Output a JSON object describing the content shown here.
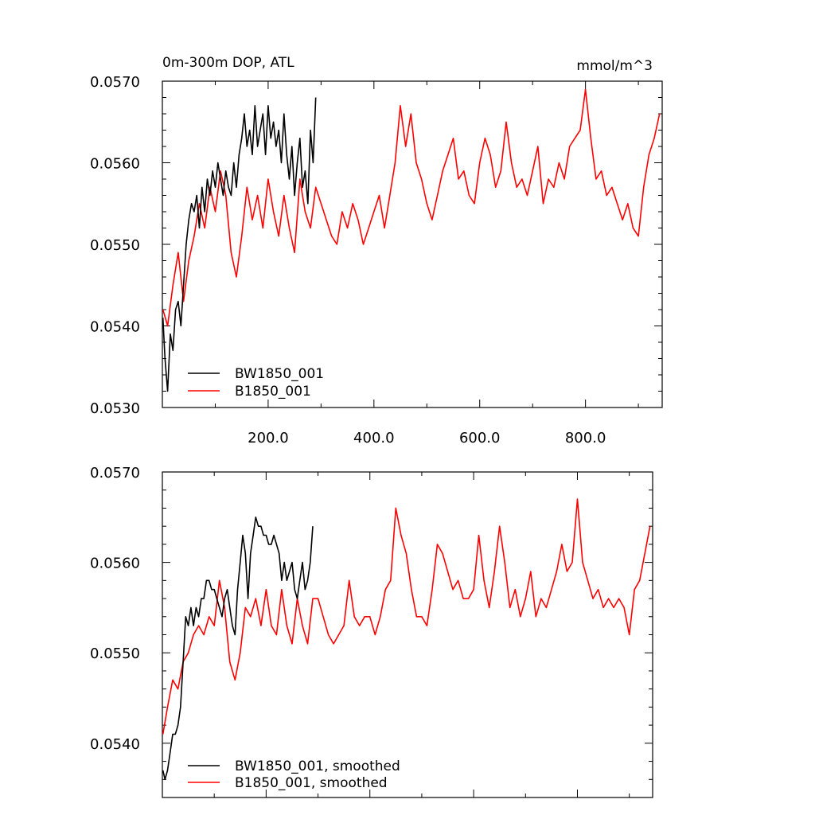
{
  "chart_data": [
    {
      "type": "line",
      "title": "0m-300m DOP, ATL",
      "units_label": "mmol/m^3",
      "xlim": [
        0,
        945
      ],
      "ylim": [
        0.053,
        0.057
      ],
      "xticks": [
        200,
        400,
        600,
        800
      ],
      "xtick_labels": [
        "200.0",
        "400.0",
        "600.0",
        "800.0"
      ],
      "yticks": [
        0.053,
        0.054,
        0.055,
        0.056,
        0.057
      ],
      "ytick_labels": [
        "0.0530",
        "0.0540",
        "0.0550",
        "0.0560",
        "0.0570"
      ],
      "legend_position": "bottom-left",
      "series": [
        {
          "name": "BW1850_001",
          "color": "#000000",
          "x": [
            1,
            5,
            10,
            15,
            20,
            25,
            30,
            35,
            40,
            45,
            50,
            55,
            60,
            65,
            70,
            75,
            80,
            85,
            90,
            95,
            100,
            105,
            110,
            115,
            120,
            125,
            130,
            135,
            140,
            145,
            150,
            155,
            160,
            165,
            170,
            175,
            180,
            185,
            190,
            195,
            200,
            205,
            210,
            215,
            220,
            225,
            230,
            235,
            240,
            245,
            250,
            255,
            260,
            265,
            270,
            275,
            280,
            285,
            290
          ],
          "values": [
            0.0541,
            0.0536,
            0.0532,
            0.0539,
            0.0537,
            0.0542,
            0.0543,
            0.054,
            0.0545,
            0.055,
            0.0553,
            0.0555,
            0.0554,
            0.0556,
            0.0552,
            0.0557,
            0.0554,
            0.0558,
            0.0556,
            0.0559,
            0.0557,
            0.056,
            0.0558,
            0.0556,
            0.0559,
            0.0557,
            0.0556,
            0.056,
            0.0557,
            0.0561,
            0.0563,
            0.0566,
            0.0562,
            0.0564,
            0.0561,
            0.0567,
            0.0562,
            0.0564,
            0.0566,
            0.0561,
            0.0567,
            0.0563,
            0.0565,
            0.0562,
            0.0564,
            0.056,
            0.0566,
            0.0561,
            0.0558,
            0.0562,
            0.0556,
            0.056,
            0.0563,
            0.0557,
            0.0559,
            0.0555,
            0.0564,
            0.056,
            0.0568
          ]
        },
        {
          "name": "B1850_001",
          "color": "#ff0000",
          "x": [
            1,
            10,
            20,
            30,
            40,
            50,
            60,
            70,
            80,
            90,
            100,
            110,
            120,
            130,
            140,
            150,
            160,
            170,
            180,
            190,
            200,
            210,
            220,
            230,
            240,
            250,
            260,
            270,
            280,
            290,
            300,
            310,
            320,
            330,
            340,
            350,
            360,
            370,
            380,
            390,
            400,
            410,
            420,
            430,
            440,
            450,
            460,
            470,
            480,
            490,
            500,
            510,
            520,
            530,
            540,
            550,
            560,
            570,
            580,
            590,
            600,
            610,
            620,
            630,
            640,
            650,
            660,
            670,
            680,
            690,
            700,
            710,
            720,
            730,
            740,
            750,
            760,
            770,
            780,
            790,
            800,
            810,
            820,
            830,
            840,
            850,
            860,
            870,
            880,
            890,
            900,
            910,
            920,
            930,
            940
          ],
          "values": [
            0.0542,
            0.054,
            0.0545,
            0.0549,
            0.0543,
            0.0548,
            0.0551,
            0.0555,
            0.0552,
            0.0557,
            0.0554,
            0.0559,
            0.0556,
            0.0549,
            0.0546,
            0.0551,
            0.0557,
            0.0553,
            0.0556,
            0.0552,
            0.0558,
            0.0554,
            0.0551,
            0.0556,
            0.0552,
            0.0549,
            0.0558,
            0.0554,
            0.0552,
            0.0557,
            0.0555,
            0.0553,
            0.0551,
            0.055,
            0.0554,
            0.0552,
            0.0555,
            0.0553,
            0.055,
            0.0552,
            0.0554,
            0.0556,
            0.0552,
            0.0556,
            0.056,
            0.0567,
            0.0562,
            0.0566,
            0.056,
            0.0558,
            0.0555,
            0.0553,
            0.0556,
            0.0559,
            0.0561,
            0.0563,
            0.0558,
            0.0559,
            0.0556,
            0.0555,
            0.056,
            0.0563,
            0.0561,
            0.0557,
            0.0559,
            0.0565,
            0.056,
            0.0557,
            0.0558,
            0.0556,
            0.0559,
            0.0562,
            0.0555,
            0.0558,
            0.0557,
            0.056,
            0.0558,
            0.0562,
            0.0563,
            0.0564,
            0.0569,
            0.0563,
            0.0558,
            0.0559,
            0.0556,
            0.0557,
            0.0555,
            0.0553,
            0.0555,
            0.0552,
            0.0551,
            0.0557,
            0.0561,
            0.0563,
            0.0566
          ]
        }
      ]
    },
    {
      "type": "line",
      "xlim": [
        0,
        945
      ],
      "ylim": [
        0.0534,
        0.057
      ],
      "xticks": [
        200,
        400,
        600,
        800
      ],
      "yticks": [
        0.054,
        0.055,
        0.056,
        0.057
      ],
      "ytick_labels": [
        "0.0540",
        "0.0550",
        "0.0560",
        "0.0570"
      ],
      "legend_position": "bottom-left",
      "series": [
        {
          "name": "BW1850_001, smoothed",
          "color": "#000000",
          "x": [
            1,
            5,
            10,
            15,
            20,
            25,
            30,
            35,
            40,
            45,
            50,
            55,
            60,
            65,
            70,
            75,
            80,
            85,
            90,
            95,
            100,
            105,
            110,
            115,
            120,
            125,
            130,
            135,
            140,
            145,
            150,
            155,
            160,
            165,
            170,
            175,
            180,
            185,
            190,
            195,
            200,
            205,
            210,
            215,
            220,
            225,
            230,
            235,
            240,
            245,
            250,
            255,
            260,
            265,
            270,
            275,
            280,
            285,
            290
          ],
          "values": [
            0.0537,
            0.0536,
            0.0537,
            0.0539,
            0.0541,
            0.0541,
            0.0542,
            0.0544,
            0.0549,
            0.0554,
            0.0553,
            0.0555,
            0.0553,
            0.0555,
            0.0554,
            0.0556,
            0.0556,
            0.0558,
            0.0558,
            0.0557,
            0.0557,
            0.0556,
            0.0555,
            0.0554,
            0.0556,
            0.0557,
            0.0555,
            0.0553,
            0.0552,
            0.0557,
            0.056,
            0.0563,
            0.0561,
            0.0556,
            0.0561,
            0.0563,
            0.0565,
            0.0564,
            0.0564,
            0.0563,
            0.0563,
            0.0562,
            0.0562,
            0.0563,
            0.0562,
            0.0561,
            0.0558,
            0.056,
            0.0558,
            0.0559,
            0.056,
            0.0557,
            0.0556,
            0.0558,
            0.056,
            0.0557,
            0.0558,
            0.056,
            0.0564
          ]
        },
        {
          "name": "B1850_001, smoothed",
          "color": "#ff0000",
          "x": [
            1,
            10,
            20,
            30,
            40,
            50,
            60,
            70,
            80,
            90,
            100,
            110,
            120,
            130,
            140,
            150,
            160,
            170,
            180,
            190,
            200,
            210,
            220,
            230,
            240,
            250,
            260,
            270,
            280,
            290,
            300,
            310,
            320,
            330,
            340,
            350,
            360,
            370,
            380,
            390,
            400,
            410,
            420,
            430,
            440,
            450,
            460,
            470,
            480,
            490,
            500,
            510,
            520,
            530,
            540,
            550,
            560,
            570,
            580,
            590,
            600,
            610,
            620,
            630,
            640,
            650,
            660,
            670,
            680,
            690,
            700,
            710,
            720,
            730,
            740,
            750,
            760,
            770,
            780,
            790,
            800,
            810,
            820,
            830,
            840,
            850,
            860,
            870,
            880,
            890,
            900,
            910,
            920,
            930,
            940
          ],
          "values": [
            0.0541,
            0.0544,
            0.0547,
            0.0546,
            0.0549,
            0.055,
            0.0552,
            0.0553,
            0.0552,
            0.0554,
            0.0553,
            0.0558,
            0.0555,
            0.0549,
            0.0547,
            0.055,
            0.0555,
            0.0554,
            0.0556,
            0.0553,
            0.0557,
            0.0553,
            0.0552,
            0.0557,
            0.0553,
            0.0551,
            0.0556,
            0.0553,
            0.0551,
            0.0556,
            0.0556,
            0.0554,
            0.0552,
            0.0551,
            0.0552,
            0.0553,
            0.0558,
            0.0554,
            0.0553,
            0.0554,
            0.0554,
            0.0552,
            0.0554,
            0.0557,
            0.0558,
            0.0566,
            0.0563,
            0.0561,
            0.0557,
            0.0554,
            0.0554,
            0.0553,
            0.0557,
            0.0562,
            0.0561,
            0.0559,
            0.0557,
            0.0558,
            0.0556,
            0.0556,
            0.0557,
            0.0563,
            0.0558,
            0.0555,
            0.0559,
            0.0564,
            0.056,
            0.0555,
            0.0557,
            0.0554,
            0.0556,
            0.0559,
            0.0554,
            0.0556,
            0.0555,
            0.0557,
            0.0559,
            0.0562,
            0.0559,
            0.056,
            0.0567,
            0.056,
            0.0558,
            0.0556,
            0.0557,
            0.0555,
            0.0556,
            0.0555,
            0.0556,
            0.0555,
            0.0552,
            0.0557,
            0.0558,
            0.0561,
            0.0564
          ]
        }
      ]
    }
  ]
}
